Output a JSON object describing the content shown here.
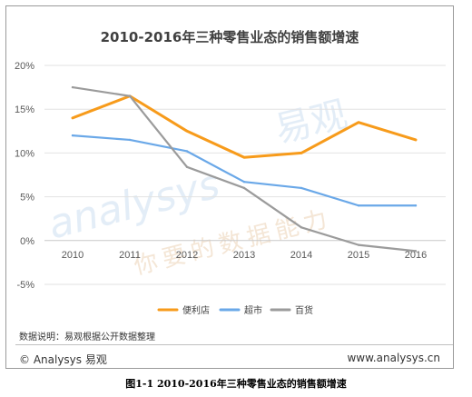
{
  "footer": {
    "note": "数据说明：易观根据公开数据整理",
    "copyright": "© Analysys 易观",
    "url": "www.analysys.cn"
  },
  "caption": "图1-1 2010-2016年三种零售业态的销售额增速",
  "watermark": {
    "brand_latin": "analysys",
    "brand_cn": "易观",
    "slogan": "你要的数据能力"
  },
  "chart_data": {
    "type": "line",
    "title": "2010-2016年三种零售业态的销售额增速",
    "xlabel": "",
    "ylabel": "",
    "categories": [
      "2010",
      "2011",
      "2012",
      "2013",
      "2014",
      "2015",
      "2016"
    ],
    "ylim": [
      -5,
      20
    ],
    "yticks": [
      -5,
      0,
      5,
      10,
      15,
      20
    ],
    "ytick_labels": [
      "-5%",
      "0%",
      "5%",
      "10%",
      "15%",
      "20%"
    ],
    "grid": "horizontal",
    "legend_position": "bottom",
    "series": [
      {
        "name": "便利店",
        "color": "#f79b1b",
        "values": [
          14.0,
          16.5,
          12.5,
          9.5,
          10.0,
          13.5,
          11.5
        ]
      },
      {
        "name": "超市",
        "color": "#6aa8e8",
        "values": [
          12.0,
          11.5,
          10.2,
          6.7,
          6.0,
          4.0,
          4.0
        ]
      },
      {
        "name": "百货",
        "color": "#9b9b9b",
        "values": [
          17.5,
          16.5,
          8.4,
          6.0,
          1.5,
          -0.5,
          -1.2
        ]
      }
    ]
  }
}
